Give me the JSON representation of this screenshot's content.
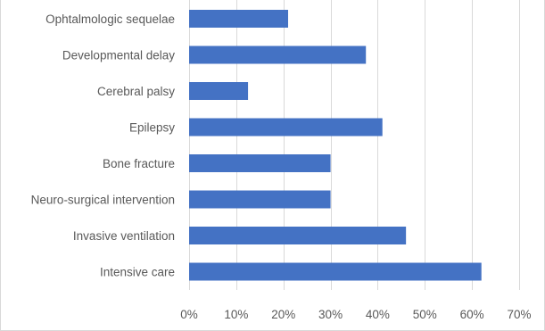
{
  "chart_data": {
    "type": "bar",
    "orientation": "horizontal",
    "categories": [
      "Ophtalmologic sequelae",
      "Developmental delay",
      "Cerebral palsy",
      "Epilepsy",
      "Bone fracture",
      "Neuro-surgical intervention",
      "Invasive ventilation",
      "Intensive care"
    ],
    "values": [
      21,
      37.5,
      12.5,
      41,
      30,
      30,
      46,
      62
    ],
    "xlim": [
      0,
      70
    ],
    "x_ticks": [
      "0%",
      "10%",
      "20%",
      "30%",
      "40%",
      "50%",
      "60%",
      "70%"
    ],
    "title": "",
    "xlabel": "",
    "ylabel": "",
    "grid": "vertical",
    "bar_color": "#4472c4",
    "grid_color": "#d9d9d9"
  }
}
